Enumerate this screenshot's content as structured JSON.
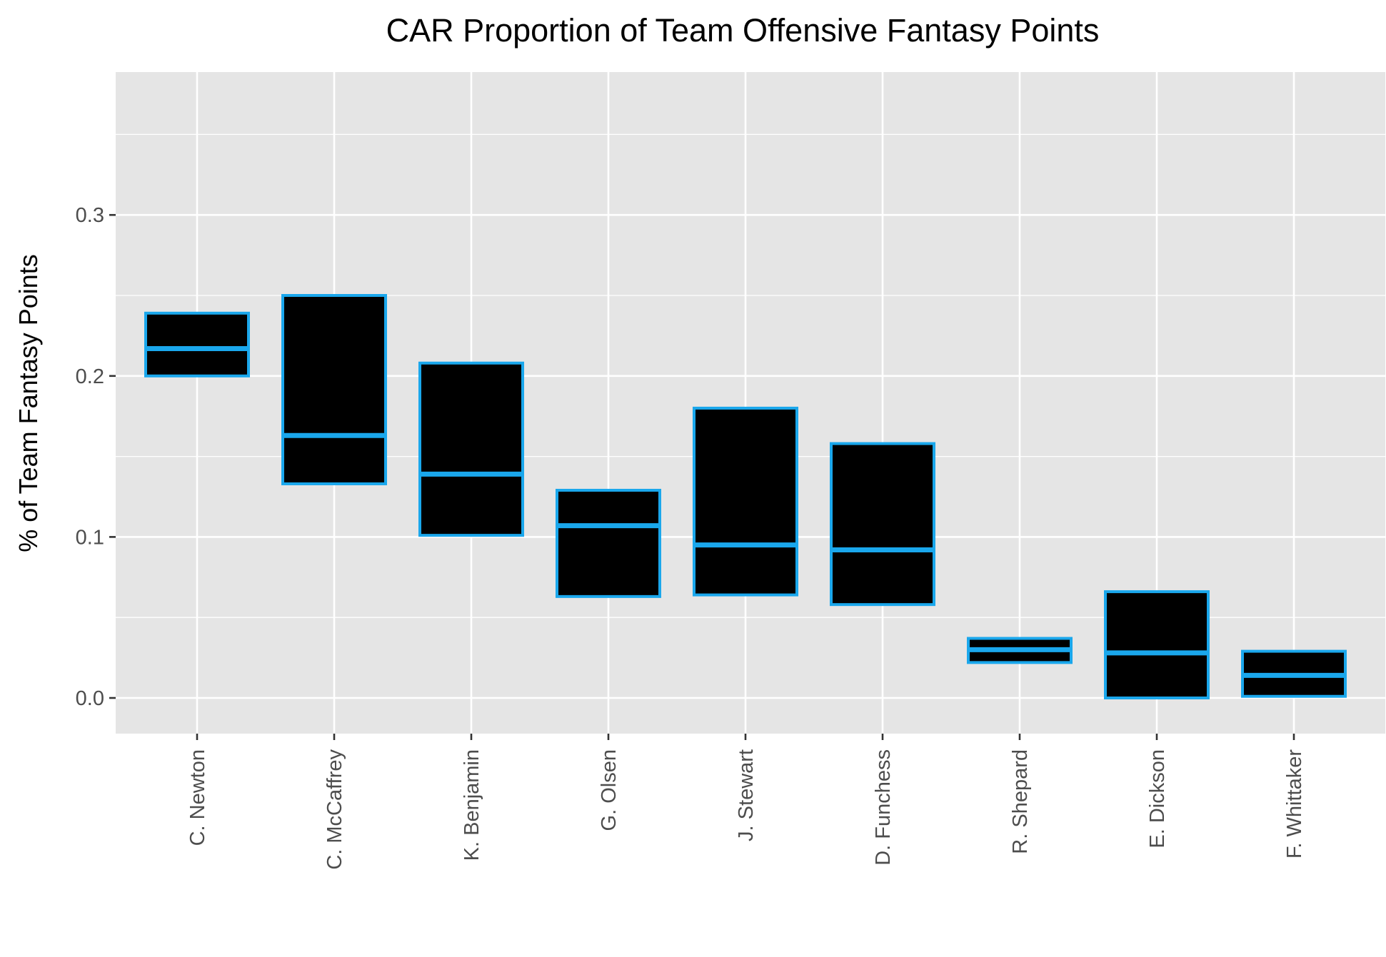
{
  "chart_data": {
    "type": "boxplot",
    "title": "CAR Proportion of Team Offensive Fantasy Points",
    "xlabel": "",
    "ylabel": "% of Team Fantasy Points",
    "ylim": [
      -0.023,
      0.39
    ],
    "yticks": [
      0.0,
      0.1,
      0.2,
      0.3
    ],
    "ytick_labels": [
      "0.0",
      "0.1",
      "0.2",
      "0.3"
    ],
    "grid": true,
    "categories": [
      "C. Newton",
      "C. McCaffrey",
      "K. Benjamin",
      "G. Olsen",
      "J. Stewart",
      "D. Funchess",
      "R. Shepard",
      "E. Dickson",
      "F. Whittaker"
    ],
    "boxes": [
      {
        "low": 0.2,
        "median": 0.217,
        "high": 0.239
      },
      {
        "low": 0.133,
        "median": 0.163,
        "high": 0.25
      },
      {
        "low": 0.101,
        "median": 0.139,
        "high": 0.208
      },
      {
        "low": 0.063,
        "median": 0.107,
        "high": 0.129
      },
      {
        "low": 0.064,
        "median": 0.095,
        "high": 0.18
      },
      {
        "low": 0.058,
        "median": 0.092,
        "high": 0.158
      },
      {
        "low": 0.022,
        "median": 0.03,
        "high": 0.037
      },
      {
        "low": 0.0,
        "median": 0.028,
        "high": 0.066
      },
      {
        "low": 0.001,
        "median": 0.014,
        "high": 0.029
      }
    ],
    "colors": {
      "box_fill": "#000000",
      "box_outline": "#1aa7ec",
      "panel_bg": "#e5e5e5",
      "grid": "#ffffff",
      "tick": "#333333"
    }
  }
}
